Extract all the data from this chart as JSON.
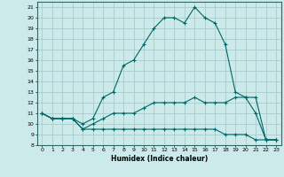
{
  "xlabel": "Humidex (Indice chaleur)",
  "background_color": "#cceaea",
  "grid_color": "#aacccc",
  "line_color": "#006666",
  "xlim": [
    -0.5,
    23.5
  ],
  "ylim": [
    8,
    21.5
  ],
  "yticks": [
    8,
    9,
    10,
    11,
    12,
    13,
    14,
    15,
    16,
    17,
    18,
    19,
    20,
    21
  ],
  "xticks": [
    0,
    1,
    2,
    3,
    4,
    5,
    6,
    7,
    8,
    9,
    10,
    11,
    12,
    13,
    14,
    15,
    16,
    17,
    18,
    19,
    20,
    21,
    22,
    23
  ],
  "series1": [
    11,
    10.5,
    10.5,
    10.5,
    10,
    10.5,
    12.5,
    13,
    15.5,
    16,
    17.5,
    19,
    20,
    20,
    19.5,
    21,
    20,
    19.5,
    17.5,
    13,
    12.5,
    11,
    8.5,
    8.5
  ],
  "series2": [
    11,
    10.5,
    10.5,
    10.5,
    9.5,
    10,
    10.5,
    11,
    11,
    11,
    11.5,
    12,
    12,
    12,
    12,
    12.5,
    12,
    12,
    12,
    12.5,
    12.5,
    12.5,
    8.5,
    8.5
  ],
  "series3": [
    11,
    10.5,
    10.5,
    10.5,
    9.5,
    9.5,
    9.5,
    9.5,
    9.5,
    9.5,
    9.5,
    9.5,
    9.5,
    9.5,
    9.5,
    9.5,
    9.5,
    9.5,
    9.0,
    9.0,
    9.0,
    8.5,
    8.5,
    8.5
  ]
}
